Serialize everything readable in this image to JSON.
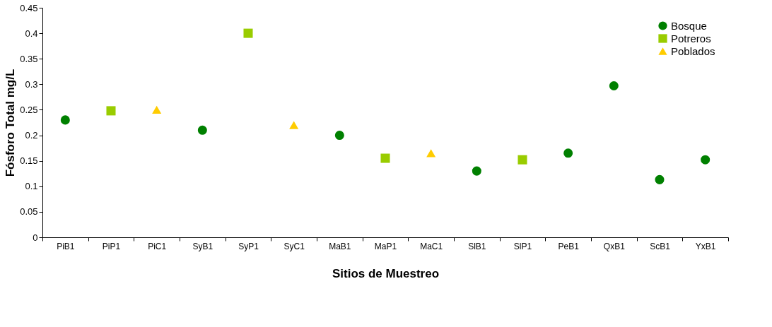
{
  "chart_data": {
    "type": "scatter",
    "xlabel": "Sitios de Muestreo",
    "ylabel": "Fósforo Total mg/L",
    "categories": [
      "PiB1",
      "PiP1",
      "PiC1",
      "SyB1",
      "SyP1",
      "SyC1",
      "MaB1",
      "MaP1",
      "MaC1",
      "SlB1",
      "SlP1",
      "PeB1",
      "QxB1",
      "ScB1",
      "YxB1"
    ],
    "series": [
      {
        "name": "Bosque",
        "color": "#008000",
        "marker": "circle",
        "values": [
          0.23,
          null,
          null,
          0.21,
          null,
          null,
          0.2,
          null,
          null,
          0.13,
          null,
          0.165,
          0.297,
          0.113,
          0.152
        ]
      },
      {
        "name": "Potreros",
        "color": "#99cc00",
        "marker": "square",
        "values": [
          null,
          0.248,
          null,
          null,
          0.4,
          null,
          null,
          0.155,
          null,
          null,
          0.152,
          null,
          null,
          null,
          null
        ]
      },
      {
        "name": "Poblados",
        "color": "#ffcc00",
        "marker": "triangle",
        "values": [
          null,
          null,
          0.25,
          null,
          null,
          0.22,
          null,
          null,
          0.165,
          null,
          null,
          null,
          null,
          null,
          null
        ]
      }
    ],
    "ylim": [
      0,
      0.45
    ],
    "yticks": [
      0,
      0.05,
      0.1,
      0.15,
      0.2,
      0.25,
      0.3,
      0.35,
      0.4,
      0.45
    ],
    "grid": false,
    "legend": "top right"
  }
}
